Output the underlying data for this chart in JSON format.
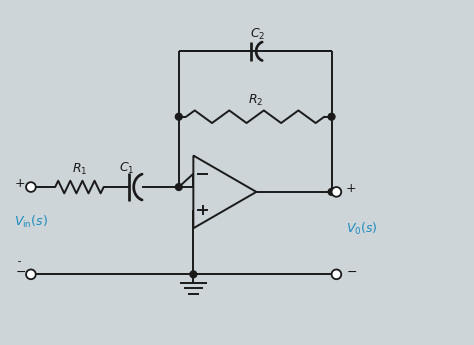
{
  "bg_color": "#cdd5d8",
  "line_color": "#1a1a1a",
  "label_color_cyan": "#1b8bbf",
  "figsize": [
    4.74,
    3.45
  ],
  "dpi": 100,
  "xlim": [
    0,
    9.5
  ],
  "ylim": [
    0,
    7.0
  ]
}
